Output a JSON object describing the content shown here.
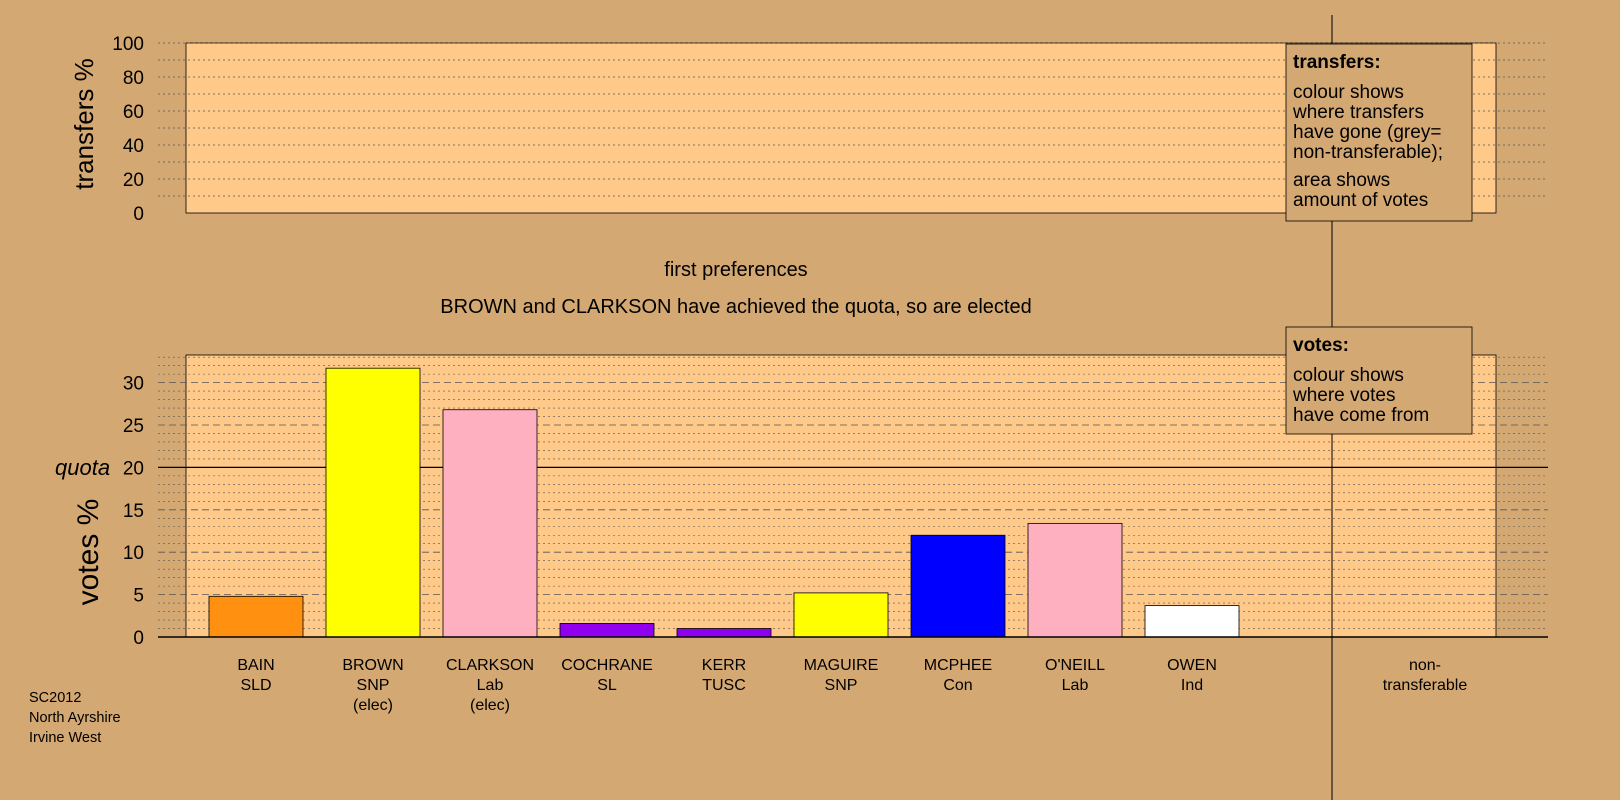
{
  "colors": {
    "background": "#d4a872",
    "plot_area": "#ffc98a",
    "legend_box": "#d4a872"
  },
  "top_panel": {
    "ylabel": "transfers %",
    "ticks": [
      "0",
      "20",
      "40",
      "60",
      "80",
      "100"
    ],
    "legend": {
      "title": "transfers:",
      "lines1": [
        "colour shows",
        "where transfers",
        "have gone (grey=",
        "non-transferable);"
      ],
      "lines2": [
        "area shows",
        "amount of votes"
      ]
    }
  },
  "stage_title": "first preferences",
  "stage_subtitle": "BROWN and CLARKSON have achieved the quota, so are elected",
  "bottom_panel": {
    "ylabel": "votes %",
    "quota_label": "quota",
    "quota_value": 20,
    "ticks": [
      "0",
      "5",
      "10",
      "15",
      "20",
      "25",
      "30"
    ],
    "legend": {
      "title": "votes:",
      "lines": [
        "colour shows",
        "where votes",
        "have come from"
      ]
    }
  },
  "footer": {
    "lines": [
      "SC2012",
      "North Ayrshire",
      "Irvine West"
    ]
  },
  "chart_data": {
    "type": "bar",
    "ylabel": "votes %",
    "ylim": [
      0,
      33
    ],
    "quota": 20,
    "categories": [
      {
        "name": "BAIN",
        "party": "SLD",
        "note": ""
      },
      {
        "name": "BROWN",
        "party": "SNP",
        "note": "(elec)"
      },
      {
        "name": "CLARKSON",
        "party": "Lab",
        "note": "(elec)"
      },
      {
        "name": "COCHRANE",
        "party": "SL",
        "note": ""
      },
      {
        "name": "KERR",
        "party": "TUSC",
        "note": ""
      },
      {
        "name": "MAGUIRE",
        "party": "SNP",
        "note": ""
      },
      {
        "name": "MCPHEE",
        "party": "Con",
        "note": ""
      },
      {
        "name": "O'NEILL",
        "party": "Lab",
        "note": ""
      },
      {
        "name": "OWEN",
        "party": "Ind",
        "note": ""
      }
    ],
    "values": [
      4.8,
      31.7,
      26.8,
      1.6,
      1.0,
      5.2,
      12.0,
      13.4,
      3.7
    ],
    "colors": [
      "#ff9010",
      "#ffff00",
      "#ffb0c0",
      "#9000ee",
      "#9000ee",
      "#ffff00",
      "#0000ff",
      "#ffb0c0",
      "#ffffff"
    ],
    "nontransferable": {
      "line1": "non-",
      "line2": "transferable",
      "value": 0
    }
  }
}
